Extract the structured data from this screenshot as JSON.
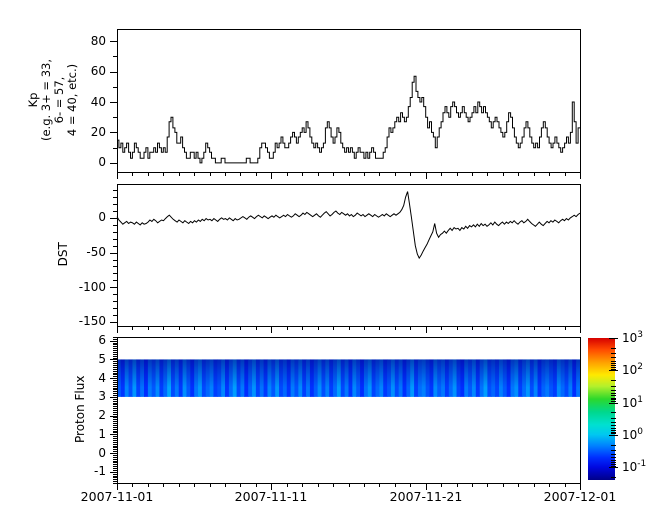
{
  "figure": {
    "background": "#ffffff",
    "axis_color": "#000000",
    "line_color": "#000000"
  },
  "x_axis": {
    "start": "2007-11-01",
    "end": "2007-12-01",
    "total_days": 30,
    "minor_step_days": 1,
    "major_days": [
      0,
      10,
      20,
      30
    ],
    "tick_labels": [
      "2007-11-01",
      "2007-11-11",
      "2007-11-21",
      "2007-12-01"
    ]
  },
  "chart_data": [
    {
      "id": "kp",
      "type": "line",
      "line_style": "step",
      "ylabel_lines": [
        "Kp",
        "(e.g. 3+ = 33,",
        "6- = 57,",
        "4 = 40, etc.)"
      ],
      "ylim": [
        -6,
        88
      ],
      "yticks": [
        0,
        20,
        40,
        60,
        80
      ],
      "y_minor_step": 10,
      "cadence_hours": 3,
      "values": [
        15,
        10,
        13,
        7,
        10,
        13,
        7,
        3,
        7,
        13,
        10,
        7,
        3,
        3,
        7,
        10,
        3,
        7,
        7,
        10,
        7,
        13,
        10,
        7,
        10,
        7,
        17,
        27,
        30,
        23,
        20,
        13,
        13,
        17,
        10,
        7,
        3,
        3,
        7,
        7,
        3,
        7,
        3,
        0,
        3,
        7,
        13,
        10,
        7,
        3,
        3,
        0,
        0,
        0,
        3,
        3,
        0,
        0,
        0,
        0,
        0,
        0,
        0,
        0,
        0,
        0,
        0,
        3,
        3,
        0,
        0,
        0,
        0,
        3,
        10,
        13,
        13,
        10,
        7,
        3,
        3,
        7,
        13,
        10,
        13,
        17,
        13,
        10,
        10,
        13,
        17,
        20,
        17,
        13,
        17,
        20,
        23,
        20,
        27,
        23,
        17,
        13,
        10,
        13,
        10,
        7,
        10,
        13,
        23,
        27,
        23,
        17,
        13,
        17,
        23,
        20,
        13,
        10,
        7,
        10,
        7,
        10,
        7,
        3,
        7,
        10,
        7,
        7,
        3,
        7,
        3,
        7,
        10,
        7,
        3,
        3,
        3,
        3,
        7,
        10,
        17,
        23,
        20,
        23,
        27,
        30,
        27,
        33,
        30,
        27,
        30,
        37,
        43,
        53,
        57,
        47,
        43,
        40,
        43,
        37,
        30,
        23,
        27,
        20,
        17,
        10,
        17,
        23,
        27,
        33,
        37,
        33,
        30,
        37,
        40,
        37,
        33,
        30,
        33,
        37,
        33,
        30,
        27,
        30,
        33,
        37,
        33,
        40,
        37,
        33,
        37,
        33,
        30,
        27,
        23,
        27,
        30,
        27,
        23,
        20,
        17,
        20,
        27,
        33,
        30,
        23,
        17,
        13,
        10,
        13,
        17,
        23,
        27,
        23,
        17,
        13,
        10,
        13,
        10,
        17,
        23,
        27,
        23,
        17,
        13,
        10,
        13,
        17,
        13,
        10,
        7,
        10,
        13,
        17,
        13,
        20,
        40,
        27,
        13,
        23
      ]
    },
    {
      "id": "dst",
      "type": "line",
      "line_style": "linear",
      "ylabel": "DST",
      "ylim": [
        -156,
        49
      ],
      "yticks": [
        0,
        -50,
        -100,
        -150
      ],
      "y_minor_step": 10,
      "cadence_hours": 3,
      "values": [
        2,
        -3,
        -6,
        -9,
        -7,
        -5,
        -8,
        -6,
        -7,
        -9,
        -6,
        -8,
        -10,
        -7,
        -9,
        -8,
        -6,
        -3,
        -5,
        -2,
        -4,
        -7,
        -5,
        -3,
        -4,
        -1,
        2,
        4,
        1,
        -2,
        -4,
        -6,
        -3,
        -5,
        -7,
        -4,
        -6,
        -8,
        -5,
        -7,
        -4,
        -6,
        -3,
        -5,
        -2,
        -4,
        -1,
        -3,
        -2,
        -4,
        -1,
        -3,
        -5,
        -2,
        0,
        -2,
        -1,
        -3,
        0,
        -2,
        -4,
        -1,
        -3,
        -2,
        0,
        2,
        0,
        -2,
        1,
        3,
        1,
        -1,
        2,
        4,
        2,
        0,
        3,
        1,
        -1,
        1,
        3,
        1,
        4,
        2,
        0,
        2,
        4,
        2,
        5,
        3,
        1,
        3,
        6,
        4,
        2,
        4,
        7,
        5,
        8,
        6,
        4,
        2,
        4,
        6,
        3,
        1,
        4,
        7,
        9,
        6,
        3,
        5,
        8,
        10,
        7,
        5,
        8,
        6,
        4,
        6,
        3,
        5,
        2,
        4,
        7,
        5,
        3,
        5,
        2,
        4,
        6,
        4,
        2,
        5,
        3,
        1,
        3,
        5,
        3,
        6,
        4,
        2,
        4,
        6,
        4,
        6,
        8,
        12,
        18,
        30,
        38,
        20,
        0,
        -20,
        -40,
        -52,
        -58,
        -54,
        -48,
        -43,
        -38,
        -32,
        -26,
        -20,
        -8,
        -22,
        -28,
        -24,
        -22,
        -19,
        -22,
        -18,
        -15,
        -18,
        -14,
        -16,
        -15,
        -18,
        -14,
        -16,
        -12,
        -15,
        -11,
        -13,
        -10,
        -13,
        -9,
        -12,
        -8,
        -11,
        -9,
        -12,
        -10,
        -7,
        -10,
        -6,
        -9,
        -11,
        -8,
        -6,
        -9,
        -6,
        -8,
        -5,
        -7,
        -4,
        -7,
        -9,
        -6,
        -4,
        -7,
        -5,
        -2,
        -5,
        -8,
        -10,
        -12,
        -9,
        -6,
        -9,
        -11,
        -8,
        -5,
        -7,
        -4,
        -6,
        -3,
        -5,
        -7,
        -4,
        -2,
        -4,
        -1,
        -3,
        0,
        2,
        4,
        2,
        5,
        7
      ]
    },
    {
      "id": "proton_flux",
      "type": "heatmap",
      "ylabel": "Proton Flux",
      "ylim": [
        -1.6,
        6.2
      ],
      "yticks": [
        6,
        5,
        4,
        3,
        2,
        1,
        0,
        -1
      ],
      "y_minor_step": 0.1,
      "band": {
        "y_min": 3,
        "y_max": 5
      },
      "value_range_log10": [
        -1.3,
        -0.4
      ],
      "column_values": [
        0.42,
        0.15,
        0.68,
        0.33,
        0.8,
        0.25,
        0.55,
        0.1,
        0.62,
        0.38,
        0.72,
        0.2,
        0.5,
        0.9,
        0.3,
        0.6,
        0.18,
        0.75,
        0.4,
        0.12,
        0.58,
        0.82,
        0.28,
        0.48,
        0.65,
        0.22,
        0.35,
        0.7,
        0.15,
        0.52,
        0.85,
        0.3,
        0.6,
        0.1,
        0.45,
        0.78,
        0.25,
        0.55,
        0.18,
        0.68,
        0.38,
        0.8,
        0.28,
        0.5,
        0.15,
        0.62,
        0.35,
        0.72,
        0.22,
        0.58,
        0.12,
        0.42,
        0.75,
        0.32,
        0.65,
        0.2,
        0.5,
        0.85,
        0.28,
        0.6,
        0.15,
        0.7,
        0.4,
        0.1,
        0.55,
        0.8,
        0.25,
        0.48,
        0.68,
        0.18,
        0.38,
        0.75,
        0.3,
        0.58,
        0.12,
        0.45,
        0.82,
        0.22,
        0.52,
        0.65,
        0.35,
        0.15,
        0.72,
        0.42,
        0.6,
        0.2,
        0.5,
        0.78,
        0.28,
        0.1,
        0.62,
        0.38,
        0.7,
        0.18,
        0.55,
        0.85,
        0.32,
        0.48,
        0.25,
        0.65,
        0.4,
        0.12,
        0.58,
        0.75,
        0.22,
        0.52,
        0.8,
        0.3,
        0.68,
        0.15,
        0.45,
        0.6,
        0.35,
        0.2,
        0.72,
        0.5,
        0.28,
        0.62,
        0.1,
        0.55
      ],
      "colorbar": {
        "scale": "log",
        "tick_exponents": [
          3,
          2,
          1,
          0,
          -1
        ],
        "log_range_top_bottom": [
          3,
          -1.4
        ],
        "gradient_stops_top_to_bottom": [
          [
            "0%",
            "#d60000"
          ],
          [
            "8%",
            "#ff4800"
          ],
          [
            "17%",
            "#ff9f00"
          ],
          [
            "26%",
            "#ffe900"
          ],
          [
            "34%",
            "#b4f02c"
          ],
          [
            "43%",
            "#2cd82c"
          ],
          [
            "52%",
            "#00d88c"
          ],
          [
            "61%",
            "#00e0d0"
          ],
          [
            "68%",
            "#00c8f0"
          ],
          [
            "76%",
            "#0080ff"
          ],
          [
            "84%",
            "#0030ff"
          ],
          [
            "91%",
            "#0008e0"
          ],
          [
            "100%",
            "#000089"
          ]
        ]
      }
    }
  ]
}
